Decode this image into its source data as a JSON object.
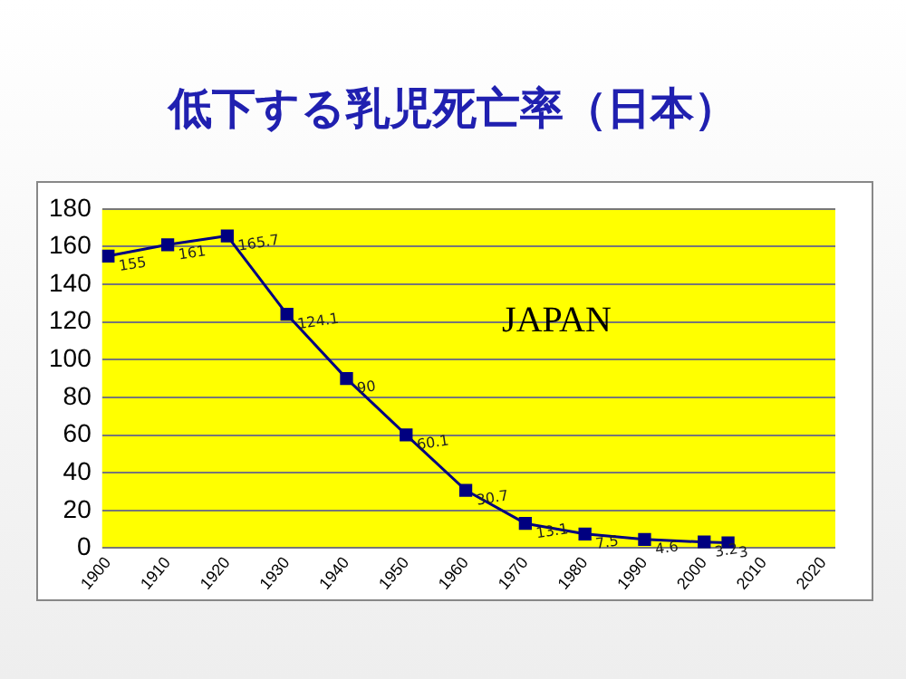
{
  "chart_data": {
    "type": "line",
    "title": "低下する乳児死亡率（日本）",
    "x": [
      1900,
      1910,
      1920,
      1930,
      1940,
      1950,
      1960,
      1970,
      1980,
      1990,
      2000,
      2004
    ],
    "series": [
      {
        "color": "#000080",
        "values": [
          155,
          161,
          165.7,
          124.1,
          90,
          60.1,
          30.7,
          13.1,
          7.5,
          4.6,
          3.2,
          2.8
        ],
        "value_labels": [
          "155",
          "161",
          "165.7",
          "124.1",
          "90",
          "60.1",
          "30.7",
          "13.1",
          "7.5",
          "4.6",
          "3.2",
          "3"
        ]
      }
    ],
    "xlim": [
      1899,
      2022
    ],
    "xticks": [
      1900,
      1910,
      1920,
      1930,
      1940,
      1950,
      1960,
      1970,
      1980,
      1990,
      2000,
      2010,
      2020
    ],
    "ylim": [
      0,
      180
    ],
    "yticks": [
      0,
      20,
      40,
      60,
      80,
      100,
      120,
      140,
      160,
      180
    ],
    "grid": "y",
    "legend": false,
    "marker": "square",
    "line_style": "solid",
    "annotations": [
      "JAPAN"
    ]
  }
}
